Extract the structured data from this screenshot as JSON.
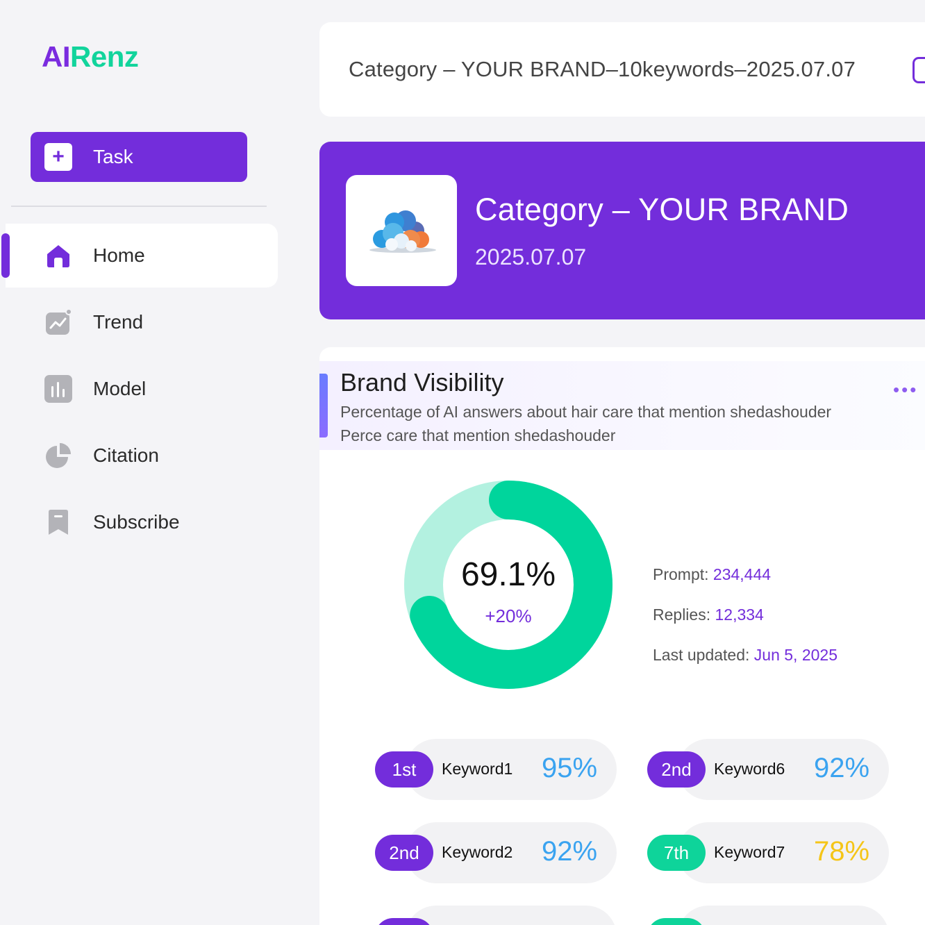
{
  "logo": {
    "part1": "AI",
    "part2": "Renz"
  },
  "sidebar": {
    "task_label": "Task",
    "items": [
      {
        "label": "Home",
        "icon": "home-icon",
        "active": true
      },
      {
        "label": "Trend",
        "icon": "trend-icon"
      },
      {
        "label": "Model",
        "icon": "bar-chart-icon"
      },
      {
        "label": "Citation",
        "icon": "pie-chart-icon"
      },
      {
        "label": "Subscribe",
        "icon": "bookmark-icon"
      }
    ]
  },
  "header": {
    "task_select": "Category – YOUR BRAND–10keywords–2025.07.07"
  },
  "banner": {
    "title": "Category – YOUR BRAND",
    "date": "2025.07.07"
  },
  "visibility": {
    "title": "Brand Visibility",
    "subtitle_1": "Percentage of AI answers about hair care that mention shedashouder",
    "subtitle_2": "Perce care that mention shedashouder",
    "value": "69.1%",
    "fraction": 0.691,
    "change": "+20%",
    "prompt_label": "Prompt:",
    "prompt_value": "234,444",
    "replies_label": "Replies:",
    "replies_value": "12,334",
    "updated_label": "Last updated:",
    "updated_value": "Jun 5, 2025"
  },
  "keywords": [
    {
      "rank": "1st",
      "name": "Keyword1",
      "pct": "95%",
      "rank_color": "#732ddb",
      "pct_color": "#3aa3f0"
    },
    {
      "rank": "2nd",
      "name": "Keyword6",
      "pct": "92%",
      "rank_color": "#732ddb",
      "pct_color": "#3aa3f0"
    },
    {
      "rank": "2nd",
      "name": "Keyword2",
      "pct": "92%",
      "rank_color": "#732ddb",
      "pct_color": "#3aa3f0"
    },
    {
      "rank": "7th",
      "name": "Keyword7",
      "pct": "78%",
      "rank_color": "#0ed49a",
      "pct_color": "#f5c518"
    }
  ],
  "colors": {
    "accent": "#732ddb",
    "green": "#00d59c",
    "green_light": "#b3f1e0"
  }
}
